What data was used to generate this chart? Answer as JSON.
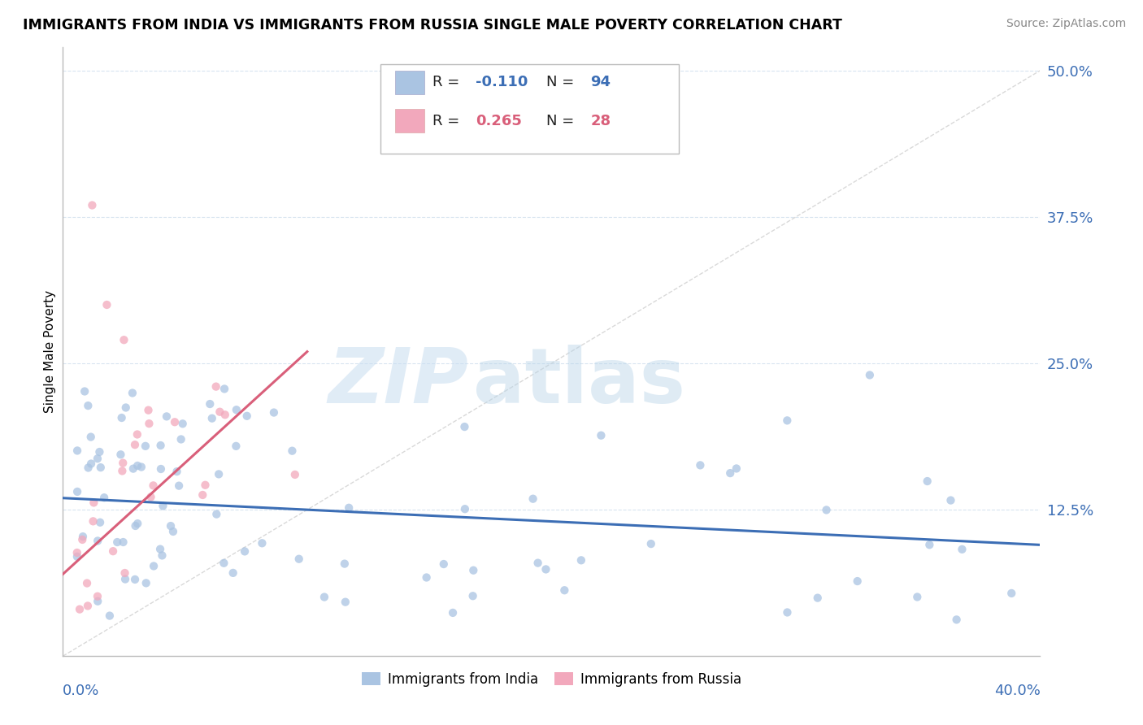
{
  "title": "IMMIGRANTS FROM INDIA VS IMMIGRANTS FROM RUSSIA SINGLE MALE POVERTY CORRELATION CHART",
  "source": "Source: ZipAtlas.com",
  "ylabel": "Single Male Poverty",
  "xlim": [
    0.0,
    0.4
  ],
  "ylim": [
    0.0,
    0.52
  ],
  "yticks": [
    0.0,
    0.125,
    0.25,
    0.375,
    0.5
  ],
  "ytick_labels": [
    "",
    "12.5%",
    "25.0%",
    "37.5%",
    "50.0%"
  ],
  "india_R": "-0.110",
  "india_N": "94",
  "russia_R": "0.265",
  "russia_N": "28",
  "india_color": "#aac4e2",
  "russia_color": "#f2a8bc",
  "india_line_color": "#3c6eb5",
  "russia_line_color": "#d95f7a",
  "legend_color_india": "#aac4e2",
  "legend_color_russia": "#f2a8bc",
  "legend_text_color": "#3c6eb5",
  "legend_R_india_color": "#3c6eb5",
  "legend_R_russia_color": "#d95f7a",
  "ref_line_color": "#d0d0d0",
  "grid_color": "#d8e4f0",
  "watermark_zip_color": "#c8ddf0",
  "watermark_atlas_color": "#b8d4e8",
  "india_line_start_y": 0.135,
  "india_line_end_y": 0.095,
  "russia_line_start_y": 0.07,
  "russia_line_end_y": 0.26,
  "russia_line_end_x": 0.1
}
